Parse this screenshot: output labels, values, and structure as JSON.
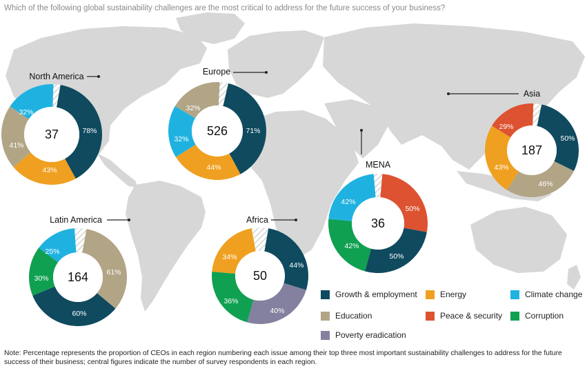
{
  "question": "Which of the following global sustainability challenges are the most critical to address for the future success of your business?",
  "footnote": "Note: Percentage represents the proportion of CEOs in each region numbering each issue among their top three most important sustainability challenges to address for the future success of their business; central figures indicate the number of survey respondents in each region.",
  "colors": {
    "growth": "#0f4a5f",
    "energy": "#efa020",
    "climate": "#1fb2e1",
    "education": "#b2a586",
    "peace": "#dd5230",
    "corruption": "#10a052",
    "poverty": "#83819f",
    "map": "#d7d7d7",
    "hatch": "#c8c8c8"
  },
  "legend": [
    {
      "key": "growth",
      "label": "Growth & employment"
    },
    {
      "key": "energy",
      "label": "Energy"
    },
    {
      "key": "climate",
      "label": "Climate change"
    },
    {
      "key": "education",
      "label": "Education"
    },
    {
      "key": "peace",
      "label": "Peace & security"
    },
    {
      "key": "corruption",
      "label": "Corruption"
    },
    {
      "key": "poverty",
      "label": "Poverty eradication"
    }
  ],
  "chart_data": [
    {
      "type": "pie",
      "title": "North America",
      "center_value": "37",
      "slices": [
        {
          "key": "growth",
          "label": "78%",
          "value": 78
        },
        {
          "key": "energy",
          "label": "43%",
          "value": 43
        },
        {
          "key": "education",
          "label": "41%",
          "value": 41
        },
        {
          "key": "climate",
          "label": "32%",
          "value": 32
        }
      ]
    },
    {
      "type": "pie",
      "title": "Europe",
      "center_value": "526",
      "slices": [
        {
          "key": "growth",
          "label": "71%",
          "value": 71
        },
        {
          "key": "energy",
          "label": "44%",
          "value": 44
        },
        {
          "key": "climate",
          "label": "32%",
          "value": 32
        },
        {
          "key": "education",
          "label": "32%",
          "value": 32
        }
      ]
    },
    {
      "type": "pie",
      "title": "Asia",
      "center_value": "187",
      "slices": [
        {
          "key": "growth",
          "label": "50%",
          "value": 50
        },
        {
          "key": "education",
          "label": "46%",
          "value": 46
        },
        {
          "key": "energy",
          "label": "43%",
          "value": 43
        },
        {
          "key": "peace",
          "label": "29%",
          "value": 29
        }
      ]
    },
    {
      "type": "pie",
      "title": "MENA",
      "center_value": "36",
      "slices": [
        {
          "key": "peace",
          "label": "50%",
          "value": 50
        },
        {
          "key": "growth",
          "label": "50%",
          "value": 50
        },
        {
          "key": "corruption",
          "label": "42%",
          "value": 42
        },
        {
          "key": "climate",
          "label": "42%",
          "value": 42
        }
      ]
    },
    {
      "type": "pie",
      "title": "Latin America",
      "center_value": "164",
      "slices": [
        {
          "key": "education",
          "label": "61%",
          "value": 61
        },
        {
          "key": "growth",
          "label": "60%",
          "value": 60
        },
        {
          "key": "corruption",
          "label": "30%",
          "value": 30
        },
        {
          "key": "climate",
          "label": "25%",
          "value": 25
        }
      ]
    },
    {
      "type": "pie",
      "title": "Africa",
      "center_value": "50",
      "slices": [
        {
          "key": "growth",
          "label": "44%",
          "value": 44
        },
        {
          "key": "poverty",
          "label": "40%",
          "value": 40
        },
        {
          "key": "corruption",
          "label": "36%",
          "value": 36
        },
        {
          "key": "energy",
          "label": "34%",
          "value": 34
        }
      ]
    }
  ]
}
